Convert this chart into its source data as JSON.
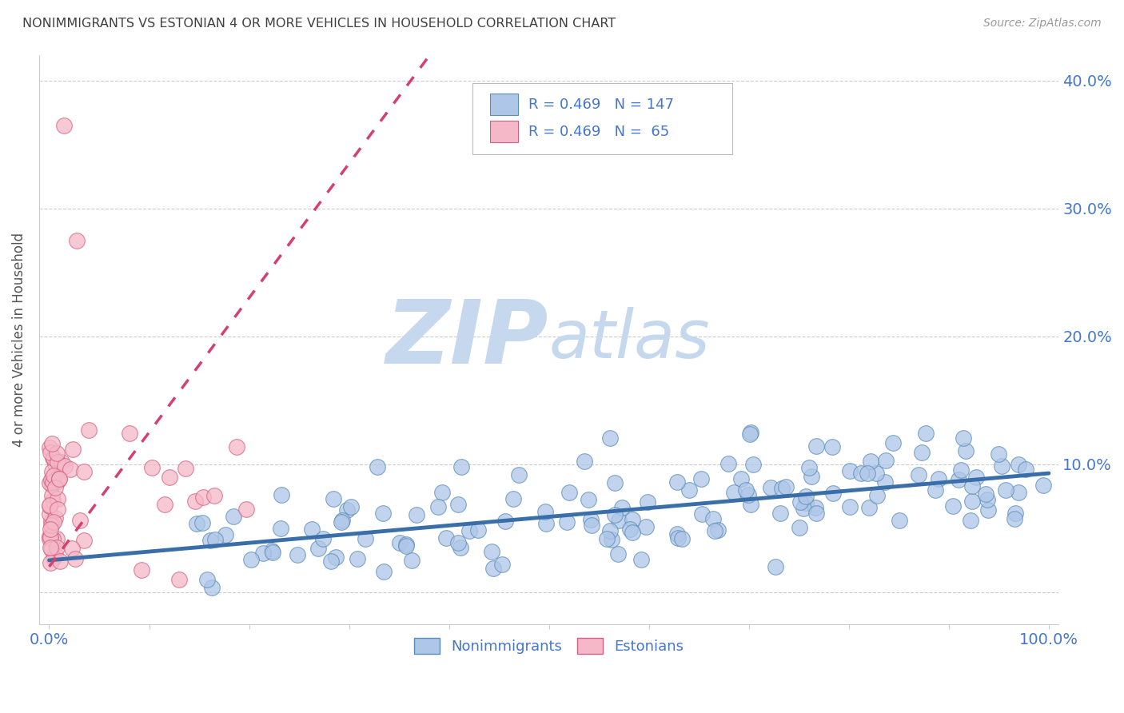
{
  "title": "NONIMMIGRANTS VS ESTONIAN 4 OR MORE VEHICLES IN HOUSEHOLD CORRELATION CHART",
  "source": "Source: ZipAtlas.com",
  "ylabel": "4 or more Vehicles in Household",
  "nonimmigrants_color": "#aec6e8",
  "nonimmigrants_edge": "#5b8db8",
  "estonians_color": "#f5b8c8",
  "estonians_edge": "#d46080",
  "trendline_blue": "#3a6ea8",
  "trendline_pink": "#d44070",
  "watermark_zip": "ZIP",
  "watermark_atlas": "atlas",
  "watermark_color": "#c5d8ee",
  "background_color": "#ffffff",
  "grid_color": "#cccccc",
  "title_color": "#404040",
  "axis_label_color": "#555555",
  "tick_color": "#4477cc",
  "fig_width": 14.06,
  "fig_height": 8.92,
  "dpi": 100,
  "blue_intercept": 2.5,
  "blue_slope": 0.068,
  "pink_intercept": 2.0,
  "pink_slope": 1.05
}
